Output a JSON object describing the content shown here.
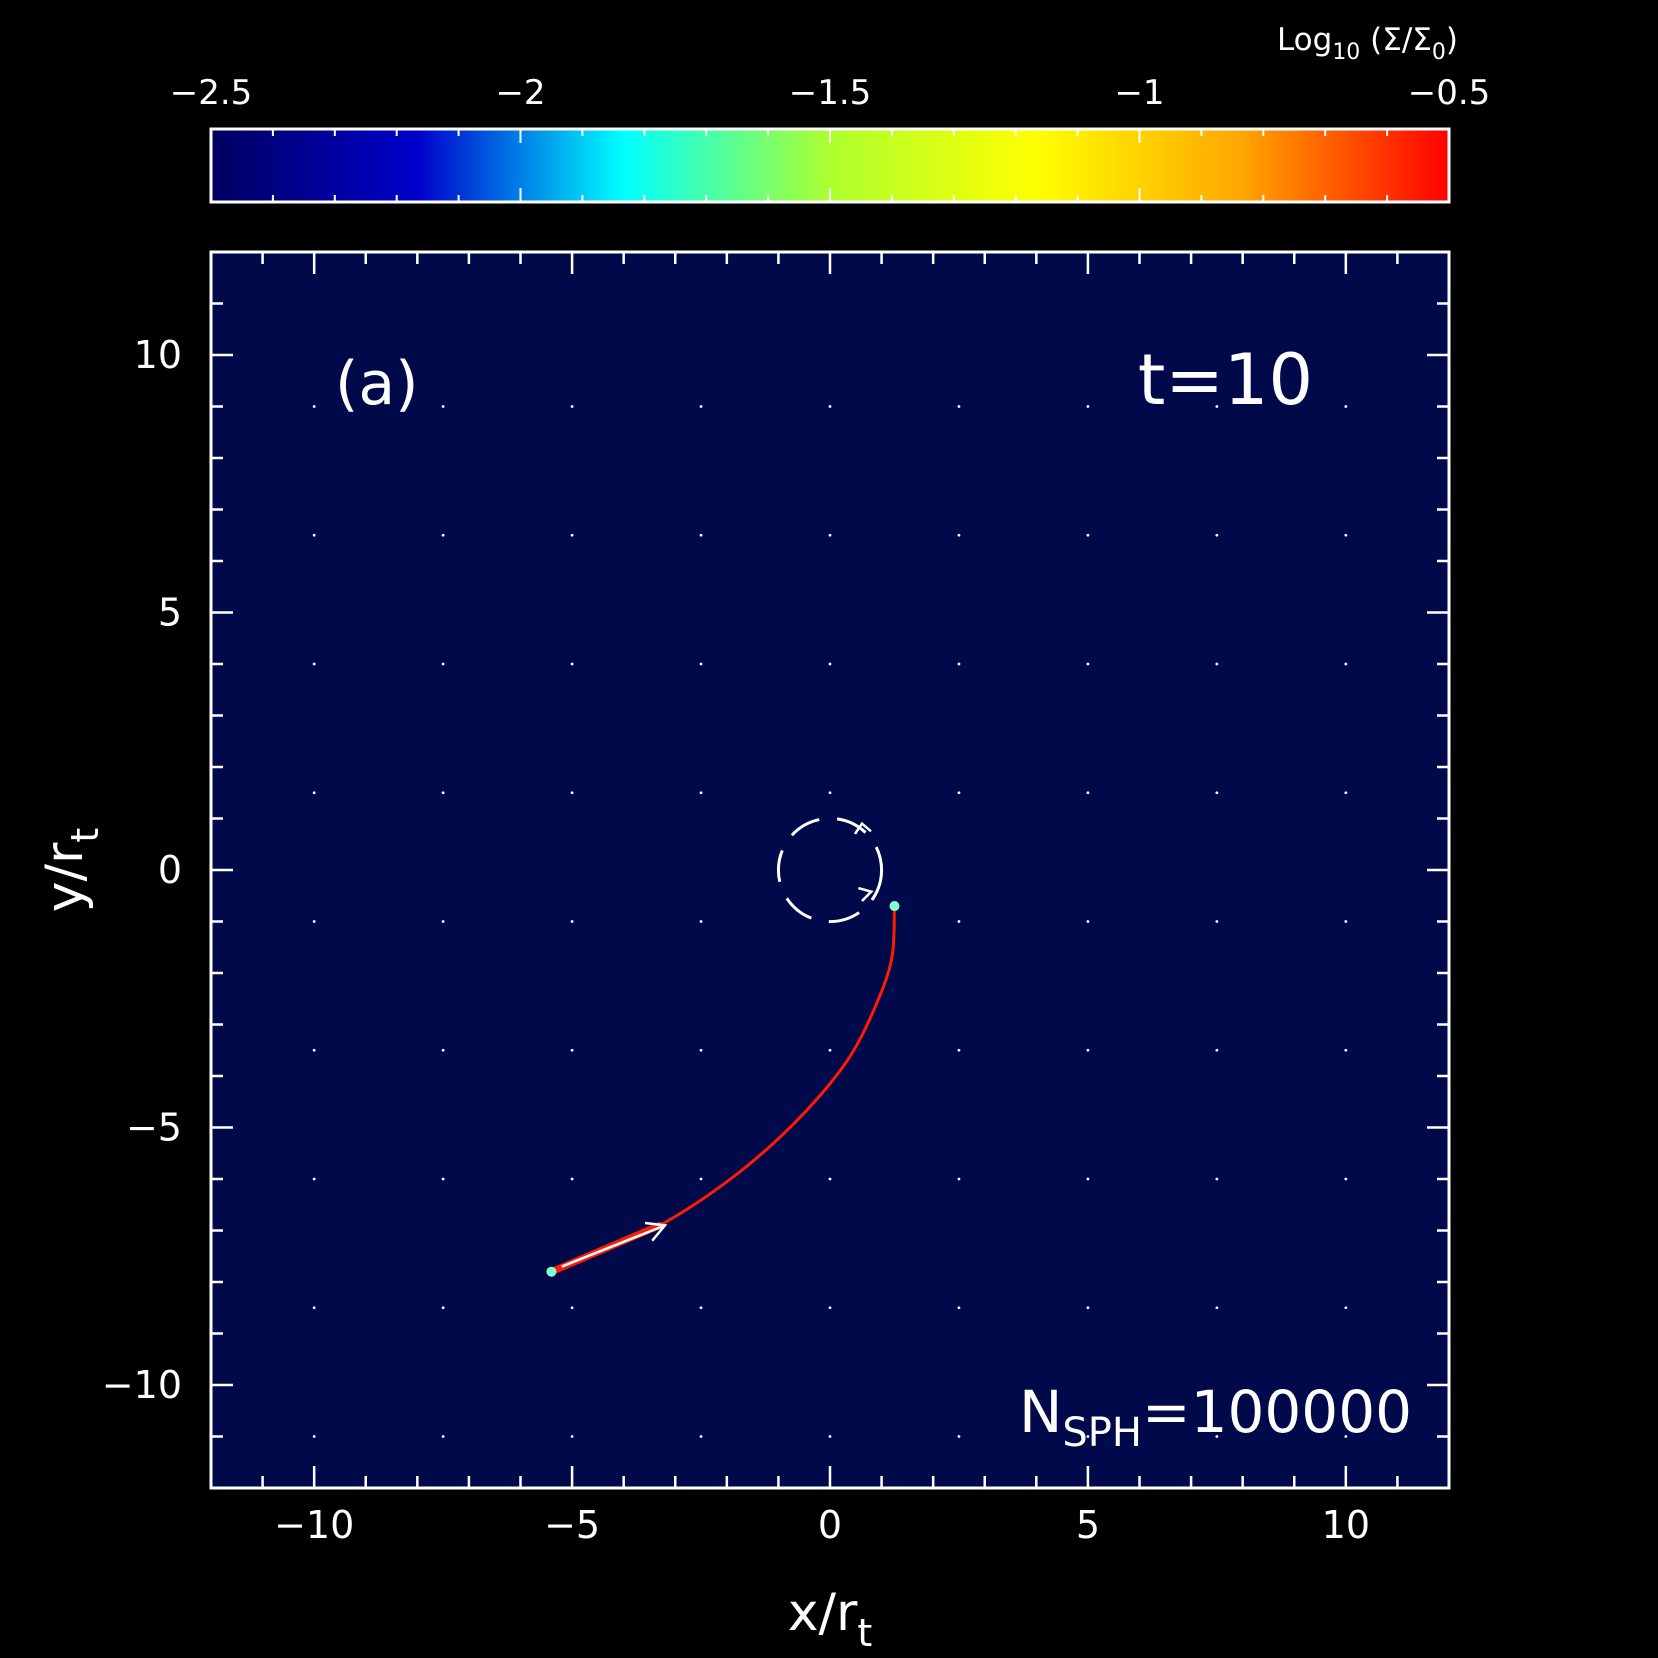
{
  "chart_data": {
    "type": "heatmap",
    "panel_label": "(a)",
    "time_label": "t=10",
    "particles": {
      "prefix": "N",
      "subscript": "SPH",
      "suffix": "=100000"
    },
    "xlabel": {
      "main": "x/r",
      "sub": "t"
    },
    "ylabel": {
      "main": "y/r",
      "sub": "t"
    },
    "xlim": [
      -12,
      12
    ],
    "ylim": [
      -12,
      12
    ],
    "xticks": [
      -10,
      -5,
      0,
      5,
      10
    ],
    "yticks": [
      -10,
      -5,
      0,
      5,
      10
    ],
    "xtick_labels": [
      "−10",
      "−5",
      "0",
      "5",
      "10"
    ],
    "ytick_labels": [
      "−10",
      "−5",
      "0",
      "5",
      "10"
    ],
    "colorbar": {
      "label": {
        "prefix": "Log",
        "sub1": "10",
        "mid": " (Σ/Σ",
        "sub2": "0",
        "suffix": ")"
      },
      "range": [
        -2.5,
        -0.5
      ],
      "ticks": [
        -2.5,
        -2,
        -1.5,
        -1,
        -0.5
      ],
      "tick_labels": [
        "−2.5",
        "−2",
        "−1.5",
        "−1",
        "−0.5"
      ],
      "colormap": [
        "#000060",
        "#0000cc",
        "#00ffff",
        "#adff2f",
        "#ffff00",
        "#ffa500",
        "#ff0000"
      ]
    },
    "grid": true,
    "background_color": "#000a4a",
    "stream": {
      "color": "#ff1a00",
      "path": [
        [
          -5.4,
          -7.8
        ],
        [
          -4.4,
          -7.4
        ],
        [
          -3.3,
          -6.9
        ],
        [
          -2.2,
          -6.2
        ],
        [
          -1.2,
          -5.4
        ],
        [
          -0.3,
          -4.5
        ],
        [
          0.4,
          -3.6
        ],
        [
          0.9,
          -2.6
        ],
        [
          1.2,
          -1.7
        ],
        [
          1.25,
          -0.7
        ]
      ]
    },
    "orbit_circle": {
      "center": [
        0,
        0
      ],
      "radius": 1.0,
      "dashed": true,
      "direction": "counter-clockwise"
    },
    "direction_arrow": {
      "from": [
        -5.2,
        -7.7
      ],
      "to": [
        -3.2,
        -6.9
      ]
    }
  }
}
